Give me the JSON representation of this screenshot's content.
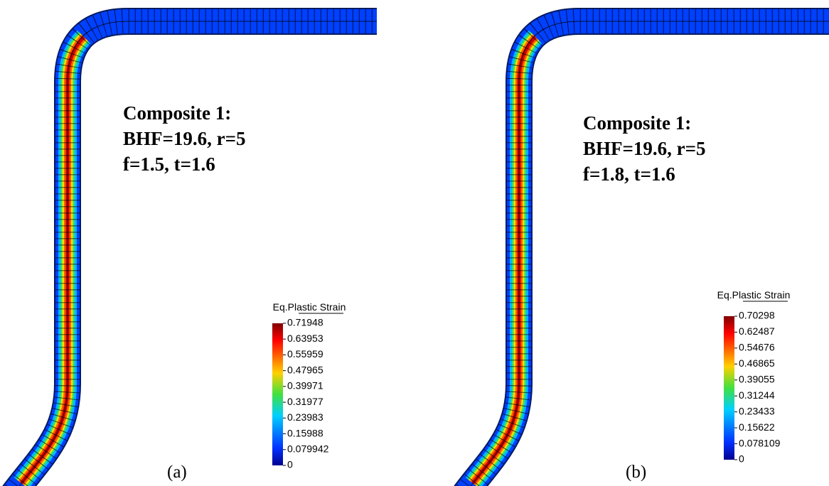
{
  "panels": [
    {
      "label": "(a)",
      "annotation": [
        "Composite 1:",
        "BHF=19.6, r=5",
        "f=1.5, t=1.6"
      ],
      "colorbar": {
        "title": "Eq.Plastic Strain",
        "ticks": [
          "0.71948",
          "0.63953",
          "0.55959",
          "0.47965",
          "0.39971",
          "0.31977",
          "0.23983",
          "0.15988",
          "0.079942",
          "0"
        ]
      }
    },
    {
      "label": "(b)",
      "annotation": [
        "Composite 1:",
        "BHF=19.6, r=5",
        "f=1.8, t=1.6"
      ],
      "colorbar": {
        "title": "Eq.Plastic Strain",
        "ticks": [
          "0.70298",
          "0.62487",
          "0.54676",
          "0.46865",
          "0.39055",
          "0.31244",
          "0.23433",
          "0.15622",
          "0.078109",
          "0"
        ]
      }
    }
  ]
}
